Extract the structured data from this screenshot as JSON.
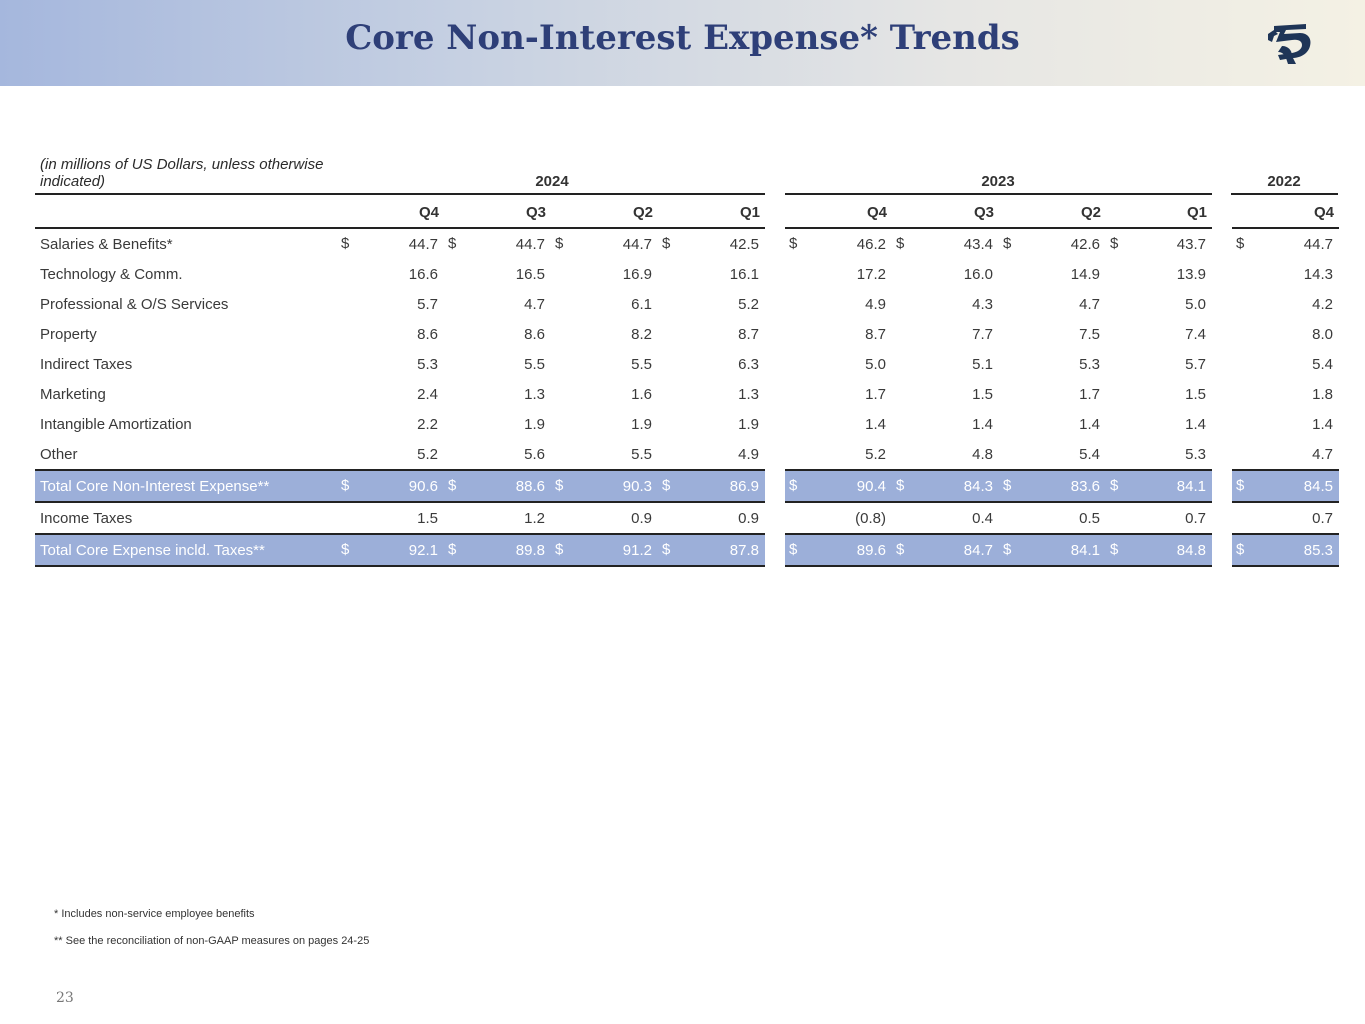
{
  "title": "Core Non-Interest Expense* Trends",
  "units_note": "(in millions of US Dollars, unless otherwise indicated)",
  "years": [
    "2024",
    "2023",
    "2022"
  ],
  "quarters": {
    "2024": [
      "Q4",
      "Q3",
      "Q2",
      "Q1"
    ],
    "2023": [
      "Q4",
      "Q3",
      "Q2",
      "Q1"
    ],
    "2022": [
      "Q4"
    ]
  },
  "rows": [
    {
      "label": "Salaries & Benefits*",
      "currency": true,
      "total": false,
      "v": [
        "44.7",
        "44.7",
        "44.7",
        "42.5",
        "46.2",
        "43.4",
        "42.6",
        "43.7",
        "44.7"
      ]
    },
    {
      "label": "Technology & Comm.",
      "currency": false,
      "total": false,
      "v": [
        "16.6",
        "16.5",
        "16.9",
        "16.1",
        "17.2",
        "16.0",
        "14.9",
        "13.9",
        "14.3"
      ]
    },
    {
      "label": "Professional & O/S Services",
      "currency": false,
      "total": false,
      "v": [
        "5.7",
        "4.7",
        "6.1",
        "5.2",
        "4.9",
        "4.3",
        "4.7",
        "5.0",
        "4.2"
      ]
    },
    {
      "label": "Property",
      "currency": false,
      "total": false,
      "v": [
        "8.6",
        "8.6",
        "8.2",
        "8.7",
        "8.7",
        "7.7",
        "7.5",
        "7.4",
        "8.0"
      ]
    },
    {
      "label": "Indirect Taxes",
      "currency": false,
      "total": false,
      "v": [
        "5.3",
        "5.5",
        "5.5",
        "6.3",
        "5.0",
        "5.1",
        "5.3",
        "5.7",
        "5.4"
      ]
    },
    {
      "label": "Marketing",
      "currency": false,
      "total": false,
      "v": [
        "2.4",
        "1.3",
        "1.6",
        "1.3",
        "1.7",
        "1.5",
        "1.7",
        "1.5",
        "1.8"
      ]
    },
    {
      "label": "Intangible Amortization",
      "currency": false,
      "total": false,
      "v": [
        "2.2",
        "1.9",
        "1.9",
        "1.9",
        "1.4",
        "1.4",
        "1.4",
        "1.4",
        "1.4"
      ]
    },
    {
      "label": "Other",
      "currency": false,
      "total": false,
      "v": [
        "5.2",
        "5.6",
        "5.5",
        "4.9",
        "5.2",
        "4.8",
        "5.4",
        "5.3",
        "4.7"
      ]
    },
    {
      "label": "Total Core Non-Interest Expense**",
      "currency": true,
      "total": true,
      "v": [
        "90.6",
        "88.6",
        "90.3",
        "86.9",
        "90.4",
        "84.3",
        "83.6",
        "84.1",
        "84.5"
      ]
    },
    {
      "label": "Income Taxes",
      "currency": false,
      "total": false,
      "v": [
        "1.5",
        "1.2",
        "0.9",
        "0.9",
        "(0.8)",
        "0.4",
        "0.5",
        "0.7",
        "0.7"
      ]
    },
    {
      "label": "Total Core Expense incld. Taxes**",
      "currency": true,
      "total": true,
      "v": [
        "92.1",
        "89.8",
        "91.2",
        "87.8",
        "89.6",
        "84.7",
        "84.1",
        "84.8",
        "85.3"
      ]
    }
  ],
  "currency_symbol": "$",
  "footnotes": [
    "* Includes non-service employee benefits",
    "** See the reconciliation of non-GAAP measures on pages 24-25"
  ],
  "page_number": "23",
  "colors": {
    "title": "#2e3f78",
    "total_row": "#9cafd9",
    "header_gradient_start": "#a5b7dd",
    "header_gradient_end": "#f4f1e4"
  },
  "logo_icon": "griffin-logo-icon"
}
